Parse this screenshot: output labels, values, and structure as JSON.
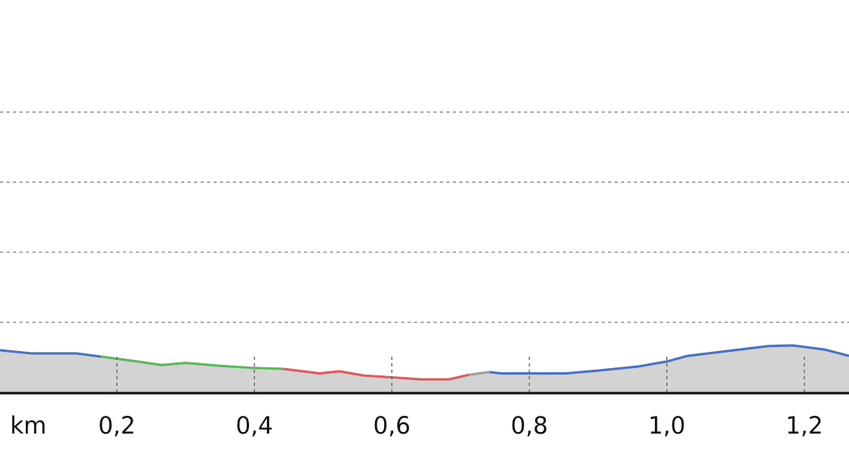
{
  "chart_data": {
    "type": "area",
    "x_label": "km",
    "xlim": [
      0.03,
      1.265
    ],
    "xticks": [
      {
        "value": 0.2,
        "label": "0,2"
      },
      {
        "value": 0.4,
        "label": "0,4"
      },
      {
        "value": 0.6,
        "label": "0,6"
      },
      {
        "value": 0.8,
        "label": "0,8"
      },
      {
        "value": 1.0,
        "label": "1,0"
      },
      {
        "value": 1.2,
        "label": "1,2"
      }
    ],
    "ylim": [
      0,
      5.6
    ],
    "yticks": [
      1,
      2,
      3,
      4
    ],
    "grid": true,
    "fill_color": "#d3d3d3",
    "series": [
      {
        "color": "#4a72c4",
        "x": [
          0.03,
          0.077,
          0.142,
          0.177
        ],
        "values": [
          0.6,
          0.555,
          0.555,
          0.51
        ]
      },
      {
        "color": "#5cb85c",
        "x": [
          0.177,
          0.23,
          0.265,
          0.3,
          0.348,
          0.395,
          0.442
        ],
        "values": [
          0.51,
          0.44,
          0.39,
          0.42,
          0.38,
          0.35,
          0.335
        ]
      },
      {
        "color": "#e05a5a",
        "x": [
          0.442,
          0.495,
          0.524,
          0.559,
          0.606,
          0.642,
          0.683,
          0.712
        ],
        "values": [
          0.335,
          0.27,
          0.3,
          0.24,
          0.21,
          0.185,
          0.185,
          0.25
        ]
      },
      {
        "color": "#a0a0a0",
        "x": [
          0.712,
          0.742
        ],
        "values": [
          0.25,
          0.29
        ]
      },
      {
        "color": "#4a72c4",
        "x": [
          0.742,
          0.759,
          0.853,
          0.9,
          0.959,
          1.0,
          1.03,
          1.089,
          1.147,
          1.183,
          1.23,
          1.265
        ],
        "values": [
          0.29,
          0.27,
          0.27,
          0.31,
          0.37,
          0.44,
          0.52,
          0.59,
          0.66,
          0.67,
          0.61,
          0.52
        ]
      }
    ]
  }
}
